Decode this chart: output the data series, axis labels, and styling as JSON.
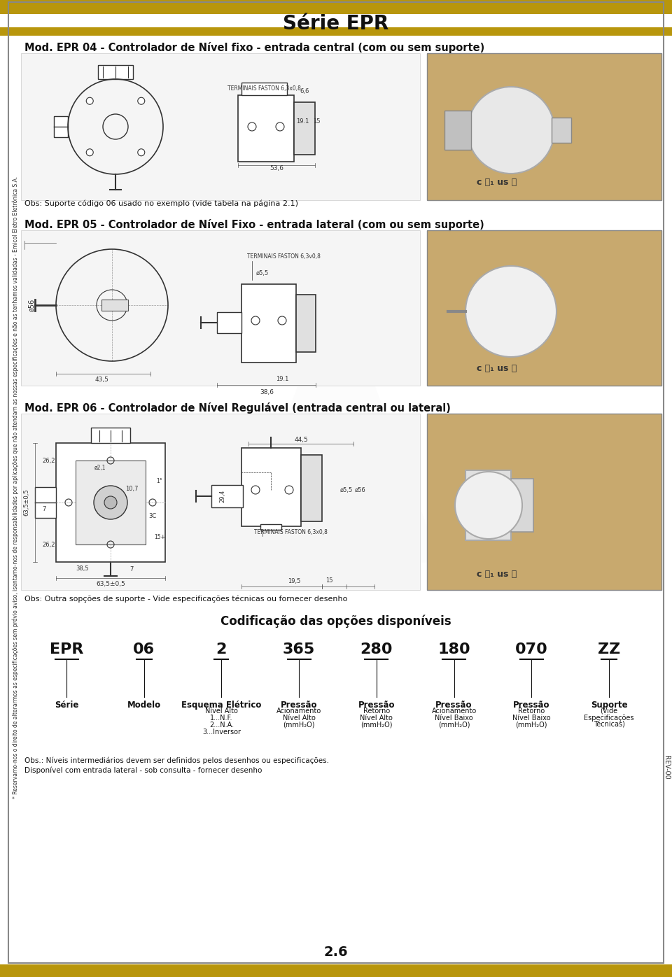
{
  "title": "Série EPR",
  "title_bar_color": "#b8960c",
  "bg_color": "#ffffff",
  "text_color": "#1a1a1a",
  "section1_title": "Mod. EPR 04 - Controlador de Nível fixo - entrada central (com ou sem suporte)",
  "section2_title": "Mod. EPR 05 - Controlador de Nível Fixo - entrada lateral (com ou sem suporte)",
  "section3_title": "Mod. EPR 06 - Controlador de Nível Regulável (entrada central ou lateral)",
  "obs1": "Obs: Suporte código 06 usado no exemplo (vide tabela na página 2.1)",
  "obs2": "Obs: Outra sopções de suporte - Vide especificações técnicas ou fornecer desenho",
  "coding_title": "Codificação das opções disponíveis",
  "coding_items": [
    {
      "code": "EPR",
      "label": "Série"
    },
    {
      "code": "06",
      "label": "Modelo"
    },
    {
      "code": "2",
      "label": "Esquema Elétrico\nNível Alto\n1...N.F.\n2...N.A.\n3...Inversor"
    },
    {
      "code": "365",
      "label": "Pressão\nAcionamento\nNível Alto\n(mmH₂O)"
    },
    {
      "code": "280",
      "label": "Pressão\nRetorno\nNível Alto\n(mmH₂O)"
    },
    {
      "code": "180",
      "label": "Pressão\nAcionamento\nNível Baixo\n(mmH₂O)"
    },
    {
      "code": "070",
      "label": "Pressão\nRetorno\nNível Baixo\n(mmH₂O)"
    },
    {
      "code": "ZZ",
      "label": "Suporte\n(Vide\nEspecificações\nTécnicas)"
    }
  ],
  "obs_bottom1": "Obs.: Níveis intermediários devem ser definidos pelos desenhos ou especificações.",
  "obs_bottom2": "Disponível com entrada lateral - sob consulta - fornecer desenho",
  "page_number": "2.6",
  "side_text": "* Reservamo-nos o direito de alterarmos as especificações sem prévio aviso, isentamo-nos de responsabilidades por aplicações que não atendam as nossas especificações e não as tenhamos validadas - Emicol Eletro Eletrônica S.A.",
  "rev_text": "REV-00",
  "watermark_text": "A",
  "photo_color": "#c8a96e",
  "drawing_color": "#e8e8e8",
  "ul_symbol": "c ⒤₁ us Ⓢ"
}
